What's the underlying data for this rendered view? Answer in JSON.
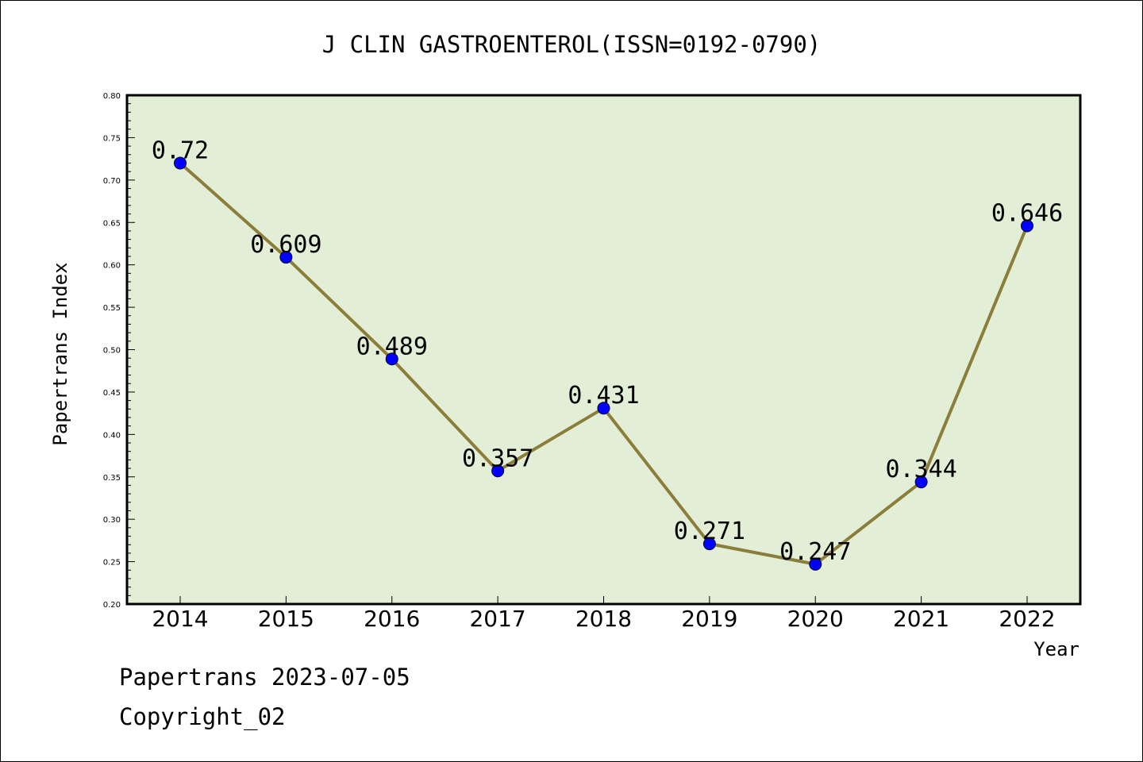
{
  "chart_data": {
    "type": "line",
    "title": "J CLIN GASTROENTEROL(ISSN=0192-0790)",
    "xlabel": "Year",
    "ylabel": "Papertrans Index",
    "categories": [
      "2014",
      "2015",
      "2016",
      "2017",
      "2018",
      "2019",
      "2020",
      "2021",
      "2022"
    ],
    "values": [
      0.72,
      0.609,
      0.489,
      0.357,
      0.431,
      0.271,
      0.247,
      0.344,
      0.646
    ],
    "value_labels": [
      "0.72",
      "0.609",
      "0.489",
      "0.357",
      "0.431",
      "0.271",
      "0.247",
      "0.344",
      "0.646"
    ],
    "ylim": [
      0.2,
      0.8
    ],
    "yticks": [
      "0.20",
      "0.25",
      "0.30",
      "0.35",
      "0.40",
      "0.45",
      "0.50",
      "0.55",
      "0.60",
      "0.65",
      "0.70",
      "0.75",
      "0.80"
    ],
    "grid": false,
    "colors": {
      "plot_background": "#e2efd6",
      "line": "#8b7d3a",
      "marker": "#0000ff"
    }
  },
  "footer": {
    "source": "Papertrans 2023-07-05",
    "copyright": "Copyright_02"
  }
}
